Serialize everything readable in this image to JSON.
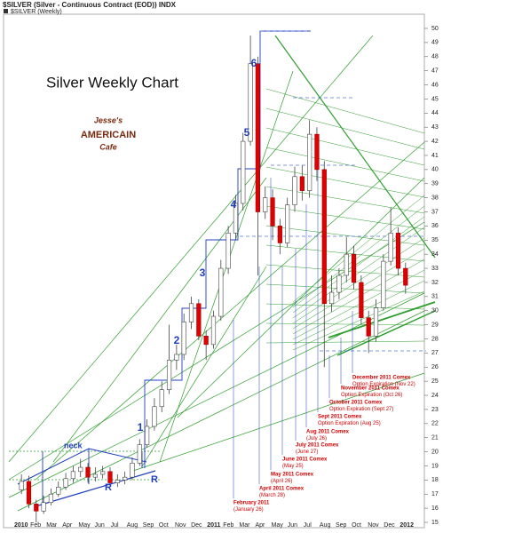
{
  "chart_data": {
    "type": "candlestick",
    "header": "$SILVER (Silver - Continuous Contract (EOD)) INDX",
    "legend": "$SILVER (Weekly)",
    "title": "Silver Weekly Chart",
    "logo": [
      "Jesse's",
      "AMERICAIN",
      "Cafe"
    ],
    "xlabels": [
      "2010",
      "Feb",
      "Mar",
      "Apr",
      "May",
      "Jun",
      "Jul",
      "Aug",
      "Sep",
      "Oct",
      "Nov",
      "Dec",
      "2011",
      "Feb",
      "Mar",
      "Apr",
      "May",
      "Jun",
      "Jul",
      "Aug",
      "Sep",
      "Oct",
      "Nov",
      "Dec",
      "2012"
    ],
    "open": [
      17.3,
      17.9,
      16.3,
      15.8,
      16.4,
      17.0,
      17.5,
      18.1,
      18.6,
      18.9,
      18.2,
      18.4,
      18.6,
      17.8,
      18.0,
      18.2,
      19.2,
      20.5,
      21.8,
      23.2,
      24.4,
      26.5,
      26.9,
      29.2,
      30.5,
      28.2,
      27.6,
      29.6,
      33.0,
      35.5,
      37.6,
      42.0,
      47.5,
      37.0,
      38.0,
      36.0,
      34.8,
      37.5,
      39.5,
      38.5,
      42.5,
      40.0,
      30.5,
      31.3,
      32.5,
      34.0,
      32.0,
      29.5,
      28.2,
      30.2,
      33.5,
      35.5,
      33.0
    ],
    "high": [
      18.4,
      18.3,
      16.6,
      16.9,
      17.4,
      17.9,
      18.5,
      19.0,
      19.5,
      19.2,
      18.9,
      19.0,
      18.9,
      18.4,
      18.6,
      19.6,
      20.9,
      22.3,
      23.8,
      25.0,
      29.0,
      27.6,
      29.8,
      31.0,
      30.8,
      28.6,
      30.0,
      33.6,
      36.0,
      38.2,
      42.6,
      49.5,
      48.0,
      38.8,
      38.6,
      36.5,
      38.0,
      40.2,
      40.3,
      43.5,
      43.0,
      40.6,
      32.5,
      33.0,
      35.2,
      34.6,
      32.5,
      30.0,
      30.8,
      34.0,
      37.3,
      35.9,
      33.4
    ],
    "low": [
      17.0,
      16.0,
      15.0,
      15.6,
      16.2,
      16.8,
      17.3,
      17.8,
      18.2,
      17.8,
      17.9,
      18.1,
      17.5,
      17.5,
      17.7,
      18.0,
      19.0,
      20.3,
      21.5,
      22.8,
      24.1,
      25.8,
      26.5,
      28.7,
      27.9,
      26.5,
      27.3,
      29.3,
      32.6,
      35.0,
      37.1,
      41.7,
      32.5,
      36.5,
      35.0,
      34.0,
      34.5,
      37.0,
      37.8,
      38.0,
      39.2,
      26.0,
      29.9,
      30.8,
      32.0,
      31.5,
      29.0,
      27.0,
      27.8,
      30.0,
      33.2,
      32.5,
      31.2
    ],
    "close": [
      17.9,
      16.3,
      15.8,
      16.4,
      17.0,
      17.5,
      18.1,
      18.6,
      18.9,
      18.2,
      18.4,
      18.6,
      17.8,
      18.0,
      18.2,
      19.2,
      20.5,
      21.8,
      23.2,
      24.4,
      26.5,
      26.9,
      29.2,
      30.5,
      28.2,
      27.6,
      29.6,
      33.0,
      35.5,
      37.6,
      42.0,
      47.5,
      37.0,
      38.0,
      36.0,
      34.8,
      37.5,
      39.5,
      38.5,
      42.5,
      40.0,
      30.5,
      31.3,
      32.5,
      34.0,
      32.0,
      29.5,
      28.2,
      30.2,
      33.5,
      35.5,
      33.0,
      31.8
    ],
    "up_color": "#ffffff",
    "down_color": "#e00000",
    "ylim": [
      15,
      50
    ],
    "yticks": [
      15,
      16,
      17,
      18,
      19,
      20,
      21,
      22,
      23,
      24,
      25,
      26,
      27,
      28,
      29,
      30,
      31,
      32,
      33,
      34,
      35,
      36,
      37,
      38,
      39,
      40,
      41,
      42,
      43,
      44,
      45,
      46,
      47,
      48,
      49,
      50
    ],
    "wave_labels": [
      "1",
      "2",
      "3",
      "4",
      "5",
      "6"
    ],
    "pattern_labels": [
      "neck",
      "R",
      "R"
    ],
    "notes": [
      [
        "February 2011",
        "(January 26)"
      ],
      [
        "April 2011 Comex",
        "(March 28)"
      ],
      [
        "May 2011 Comex",
        "(April 26)"
      ],
      [
        "June 2011 Comex",
        "(May 25)"
      ],
      [
        "July 2011 Comex",
        "(June 27)"
      ],
      [
        "Aug 2011 Comex",
        "(July 26)"
      ],
      [
        "Sept 2011 Comex",
        "Option Expiration (Aug 25)"
      ],
      [
        "October 2011 Comex",
        "Option Expiration (Sept 27)"
      ],
      [
        "November 2011 Comex",
        "Option Expiration (Oct 26)"
      ],
      [
        "December 2011 Comex",
        "Option Expiration (Nov 22)"
      ]
    ]
  }
}
